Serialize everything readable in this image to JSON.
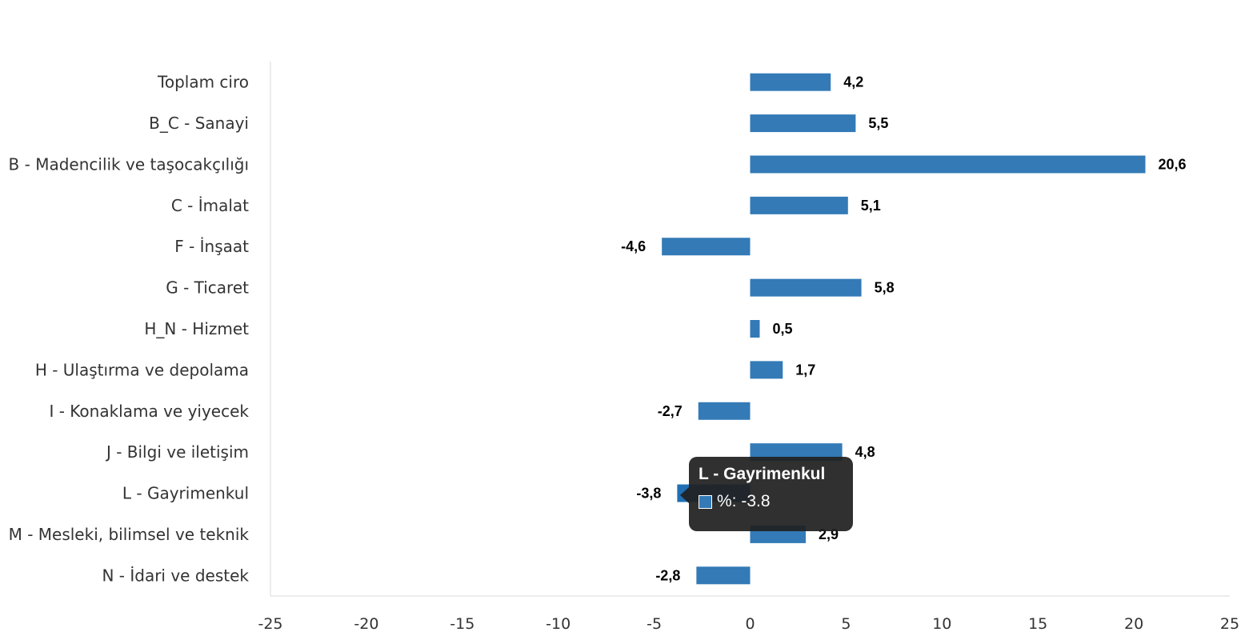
{
  "chart_data": {
    "type": "bar",
    "orientation": "horizontal",
    "categories": [
      "Toplam ciro",
      "B_C - Sanayi",
      "B - Madencilik ve taşocakçılığı",
      "C - İmalat",
      "F - İnşaat",
      "G - Ticaret",
      "H_N - Hizmet",
      "H - Ulaştırma ve depolama",
      "I - Konaklama ve yiyecek",
      "J - Bilgi ve iletişim",
      "L - Gayrimenkul",
      "M - Mesleki, bilimsel ve teknik",
      "N - İdari ve destek"
    ],
    "values": [
      4.2,
      5.5,
      20.6,
      5.1,
      -4.6,
      5.8,
      0.5,
      1.7,
      -2.7,
      4.8,
      -3.8,
      2.9,
      -2.8
    ],
    "data_labels": [
      "4,2",
      "5,5",
      "20,6",
      "5,1",
      "-4,6",
      "5,8",
      "0,5",
      "1,7",
      "-2,7",
      "4,8",
      "-3,8",
      "2,9",
      "-2,8"
    ],
    "xlim": [
      -25,
      25
    ],
    "xticks": [
      -25,
      -20,
      -15,
      -10,
      -5,
      0,
      5,
      10,
      15,
      20,
      25
    ],
    "grid": false,
    "legend": "none",
    "bar_color": "#337ab7",
    "highlight_color": "#1f6fb5",
    "highlighted_index": 10,
    "tooltip": {
      "title": "L - Gayrimenkul",
      "value_text": "%: -3.8"
    }
  }
}
